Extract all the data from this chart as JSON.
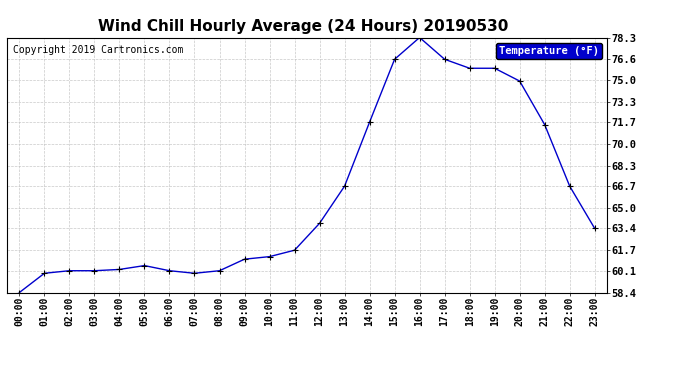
{
  "title": "Wind Chill Hourly Average (24 Hours) 20190530",
  "copyright": "Copyright 2019 Cartronics.com",
  "legend_label": "Temperature (°F)",
  "x_labels": [
    "00:00",
    "01:00",
    "02:00",
    "03:00",
    "04:00",
    "05:00",
    "06:00",
    "07:00",
    "08:00",
    "09:00",
    "10:00",
    "11:00",
    "12:00",
    "13:00",
    "14:00",
    "15:00",
    "16:00",
    "17:00",
    "18:00",
    "19:00",
    "20:00",
    "21:00",
    "22:00",
    "23:00"
  ],
  "y_values": [
    58.4,
    59.9,
    60.1,
    60.1,
    60.2,
    60.5,
    60.1,
    59.9,
    60.1,
    61.0,
    61.2,
    61.7,
    63.8,
    66.7,
    71.7,
    76.6,
    78.3,
    76.6,
    75.9,
    75.9,
    74.9,
    71.5,
    66.7,
    63.4
  ],
  "ylim_min": 58.4,
  "ylim_max": 78.3,
  "yticks": [
    58.4,
    60.1,
    61.7,
    63.4,
    65.0,
    66.7,
    68.3,
    70.0,
    71.7,
    73.3,
    75.0,
    76.6,
    78.3
  ],
  "line_color": "#0000cc",
  "marker_color": "#000000",
  "bg_color": "#ffffff",
  "grid_color": "#bbbbbb",
  "title_fontsize": 11,
  "copyright_fontsize": 7,
  "legend_bg": "#0000cc",
  "legend_fg": "#ffffff"
}
